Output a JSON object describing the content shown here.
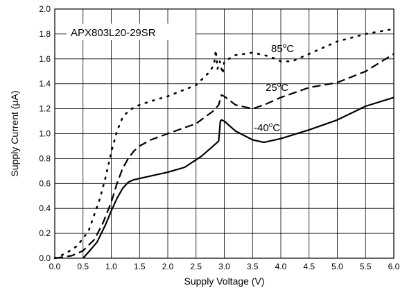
{
  "chart_data": {
    "type": "line",
    "title": "",
    "xlabel": "Supply Voltage (V)",
    "ylabel": "Supply Current (μA)",
    "xlim": [
      0.0,
      6.0
    ],
    "ylim": [
      0.0,
      2.0
    ],
    "grid": true,
    "legend": "none",
    "xticks": [
      "0.0",
      "0.5",
      "1.0",
      "1.5",
      "2.0",
      "2.5",
      "3.0",
      "3.5",
      "4.0",
      "4.5",
      "5.0",
      "5.5",
      "6.0"
    ],
    "yticks": [
      "0.0",
      "0.2",
      "0.4",
      "0.6",
      "0.8",
      "1.0",
      "1.2",
      "1.4",
      "1.6",
      "1.8",
      "2.0"
    ],
    "annotations": {
      "part": "APX803L20-29SR",
      "s85": "85",
      "s25": "25",
      "sm40": "-40",
      "deg_unit": "C",
      "deg_sup": "o"
    },
    "series": [
      {
        "label": "85°C",
        "style": "dotted",
        "x": [
          0.0,
          0.2,
          0.4,
          0.6,
          0.8,
          0.9,
          1.0,
          1.1,
          1.2,
          1.3,
          1.4,
          1.5,
          1.7,
          2.0,
          2.5,
          2.75,
          2.82,
          2.85,
          2.88,
          2.92,
          2.97,
          3.0,
          3.2,
          3.5,
          3.8,
          4.0,
          4.2,
          4.5,
          5.0,
          5.5,
          6.0
        ],
        "y": [
          0.0,
          0.04,
          0.1,
          0.22,
          0.48,
          0.65,
          0.85,
          1.02,
          1.13,
          1.18,
          1.21,
          1.23,
          1.26,
          1.3,
          1.39,
          1.5,
          1.56,
          1.67,
          1.52,
          1.58,
          1.48,
          1.58,
          1.63,
          1.65,
          1.62,
          1.58,
          1.58,
          1.64,
          1.74,
          1.8,
          1.84
        ]
      },
      {
        "label": "25°C",
        "style": "dashed",
        "x": [
          0.0,
          0.3,
          0.5,
          0.7,
          0.85,
          1.0,
          1.1,
          1.2,
          1.3,
          1.4,
          1.5,
          1.7,
          2.0,
          2.5,
          2.8,
          2.9,
          2.95,
          3.0,
          3.2,
          3.5,
          3.7,
          4.0,
          4.5,
          5.0,
          5.5,
          6.0
        ],
        "y": [
          0.0,
          0.02,
          0.06,
          0.15,
          0.28,
          0.45,
          0.6,
          0.72,
          0.8,
          0.86,
          0.9,
          0.95,
          1.0,
          1.08,
          1.18,
          1.23,
          1.31,
          1.3,
          1.23,
          1.2,
          1.23,
          1.29,
          1.37,
          1.41,
          1.5,
          1.64
        ]
      },
      {
        "label": "-40°C",
        "style": "solid",
        "x": [
          0.5,
          0.6,
          0.75,
          0.9,
          1.0,
          1.1,
          1.2,
          1.3,
          1.4,
          1.6,
          2.0,
          2.3,
          2.6,
          2.85,
          2.9,
          2.93,
          2.95,
          3.0,
          3.2,
          3.5,
          3.7,
          4.0,
          4.5,
          5.0,
          5.5,
          6.0
        ],
        "y": [
          0.0,
          0.05,
          0.13,
          0.27,
          0.38,
          0.48,
          0.56,
          0.61,
          0.63,
          0.65,
          0.69,
          0.73,
          0.82,
          0.92,
          0.94,
          1.1,
          1.11,
          1.1,
          1.02,
          0.95,
          0.93,
          0.96,
          1.03,
          1.11,
          1.22,
          1.29
        ]
      }
    ]
  }
}
